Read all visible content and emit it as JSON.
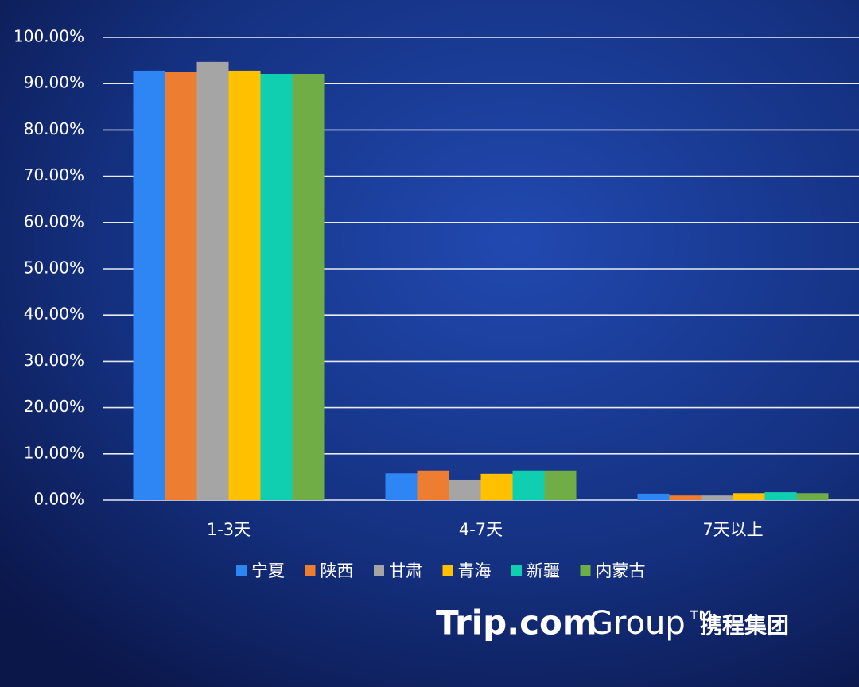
{
  "chart_data": {
    "type": "bar",
    "categories": [
      "1-3天",
      "4-7天",
      "7天以上"
    ],
    "series": [
      {
        "name": "宁夏",
        "color": "#2e86f5",
        "values": [
          92.8,
          5.8,
          1.4
        ]
      },
      {
        "name": "陕西",
        "color": "#ed7d31",
        "values": [
          92.6,
          6.4,
          1.0
        ]
      },
      {
        "name": "甘肃",
        "color": "#a5a5a5",
        "values": [
          94.7,
          4.3,
          1.0
        ]
      },
      {
        "name": "青海",
        "color": "#ffc000",
        "values": [
          92.8,
          5.7,
          1.5
        ]
      },
      {
        "name": "新疆",
        "color": "#10cfb0",
        "values": [
          92.1,
          6.4,
          1.7
        ]
      },
      {
        "name": "内蒙古",
        "color": "#70ad47",
        "values": [
          92.1,
          6.4,
          1.5
        ]
      }
    ],
    "ylim": [
      0,
      100
    ],
    "yticks": [
      {
        "value": 0,
        "label": "0.00%"
      },
      {
        "value": 10,
        "label": "10.00%"
      },
      {
        "value": 20,
        "label": "20.00%"
      },
      {
        "value": 30,
        "label": "30.00%"
      },
      {
        "value": 40,
        "label": "40.00%"
      },
      {
        "value": 50,
        "label": "50.00%"
      },
      {
        "value": 60,
        "label": "60.00%"
      },
      {
        "value": 70,
        "label": "70.00%"
      },
      {
        "value": 80,
        "label": "80.00%"
      },
      {
        "value": 90,
        "label": "90.00%"
      },
      {
        "value": 100,
        "label": "100.00%"
      }
    ],
    "grid": true,
    "legend": "bottom"
  },
  "logo": {
    "name": "Trip.com",
    "group": "Group™",
    "cn": "携程集团"
  }
}
